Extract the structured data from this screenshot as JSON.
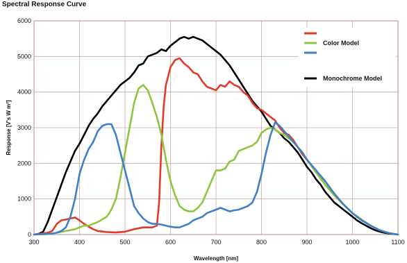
{
  "chart_data": {
    "type": "line",
    "title": "Spectral Response Curve",
    "xlabel": "Wavelength [nm]",
    "ylabel": "Response [V's W m²]",
    "xlim": [
      300,
      1100
    ],
    "ylim": [
      0,
      6000
    ],
    "x_ticks": [
      "300",
      "400",
      "500",
      "600",
      "700",
      "800",
      "900",
      "1000",
      "1100"
    ],
    "y_ticks": [
      "0",
      "1000",
      "2000",
      "3000",
      "4000",
      "5000",
      "6000"
    ],
    "grid": true,
    "legend_position": "top-right",
    "colors": {
      "red": "#e23a2a",
      "green": "#8cc63f",
      "blue": "#3f7fc7",
      "black": "#000000",
      "grid": "#c9a8a8"
    },
    "legend": [
      {
        "label": "",
        "color": "#e23a2a"
      },
      {
        "label": "Color Model",
        "color": "#8cc63f"
      },
      {
        "label": "",
        "color": "#3f7fc7"
      },
      {
        "label": "Monochrome Model",
        "color": "#000000"
      }
    ],
    "series": [
      {
        "color": "#000000",
        "x": [
          300,
          310,
          320,
          330,
          340,
          350,
          360,
          370,
          380,
          390,
          400,
          410,
          420,
          430,
          440,
          450,
          460,
          470,
          480,
          490,
          500,
          510,
          520,
          530,
          540,
          550,
          560,
          570,
          580,
          590,
          600,
          610,
          620,
          630,
          640,
          650,
          660,
          670,
          680,
          690,
          700,
          710,
          720,
          730,
          740,
          750,
          760,
          770,
          780,
          790,
          800,
          810,
          820,
          830,
          840,
          850,
          860,
          870,
          880,
          890,
          900,
          910,
          920,
          930,
          940,
          950,
          960,
          970,
          980,
          990,
          1000,
          1010,
          1020,
          1030,
          1040,
          1050,
          1060,
          1070,
          1080,
          1090,
          1100
        ],
        "y": [
          0,
          20,
          80,
          350,
          700,
          1050,
          1400,
          1750,
          2050,
          2350,
          2550,
          2800,
          3050,
          3250,
          3400,
          3600,
          3750,
          3900,
          4050,
          4200,
          4300,
          4400,
          4550,
          4750,
          4800,
          5000,
          5050,
          5100,
          5200,
          5150,
          5300,
          5400,
          5500,
          5550,
          5500,
          5550,
          5500,
          5450,
          5350,
          5250,
          5150,
          5050,
          4900,
          4750,
          4550,
          4350,
          4150,
          3950,
          3750,
          3600,
          3450,
          3250,
          3050,
          2950,
          2850,
          2700,
          2600,
          2450,
          2300,
          2100,
          1900,
          1750,
          1550,
          1400,
          1200,
          1050,
          900,
          800,
          700,
          600,
          500,
          400,
          320,
          250,
          180,
          120,
          80,
          50,
          30,
          15,
          0
        ]
      },
      {
        "color": "#e23a2a",
        "x": [
          300,
          330,
          340,
          350,
          360,
          370,
          380,
          390,
          400,
          410,
          420,
          430,
          440,
          460,
          480,
          500,
          520,
          540,
          560,
          570,
          575,
          580,
          585,
          590,
          600,
          610,
          620,
          630,
          640,
          650,
          660,
          670,
          680,
          690,
          700,
          710,
          720,
          730,
          740,
          750,
          760,
          770,
          780,
          790,
          800,
          810,
          820,
          830,
          840,
          850,
          860,
          870,
          880,
          890,
          900,
          920,
          940,
          960,
          980,
          1000,
          1020,
          1040,
          1060,
          1080,
          1100
        ],
        "y": [
          0,
          50,
          100,
          300,
          400,
          420,
          450,
          480,
          400,
          300,
          220,
          150,
          100,
          70,
          60,
          80,
          150,
          200,
          200,
          250,
          900,
          2500,
          3600,
          4200,
          4700,
          4900,
          4950,
          4800,
          4700,
          4550,
          4500,
          4300,
          4150,
          4100,
          4050,
          4200,
          4150,
          4300,
          4200,
          4150,
          4000,
          3900,
          3700,
          3550,
          3500,
          3400,
          3300,
          3200,
          3000,
          2850,
          2800,
          2650,
          2450,
          2250,
          2100,
          1750,
          1400,
          1100,
          850,
          600,
          420,
          250,
          120,
          40,
          0
        ]
      },
      {
        "color": "#8cc63f",
        "x": [
          300,
          330,
          350,
          370,
          390,
          400,
          410,
          420,
          440,
          460,
          470,
          480,
          490,
          500,
          510,
          520,
          530,
          540,
          550,
          560,
          570,
          580,
          590,
          600,
          610,
          620,
          630,
          640,
          650,
          660,
          670,
          680,
          690,
          700,
          710,
          720,
          730,
          740,
          750,
          760,
          770,
          780,
          790,
          800,
          810,
          820,
          830,
          840,
          850,
          860,
          870,
          880,
          890,
          900,
          920,
          940,
          960,
          980,
          1000,
          1020,
          1040,
          1060,
          1080,
          1100
        ],
        "y": [
          0,
          10,
          50,
          100,
          150,
          200,
          250,
          250,
          350,
          500,
          700,
          1000,
          1600,
          2300,
          3000,
          3700,
          4100,
          4200,
          4050,
          3700,
          3300,
          2800,
          2100,
          1500,
          1100,
          800,
          700,
          650,
          650,
          750,
          900,
          1200,
          1500,
          1800,
          1800,
          1850,
          2050,
          2100,
          2350,
          2400,
          2450,
          2500,
          2600,
          2850,
          2950,
          3000,
          2950,
          2850,
          2800,
          2700,
          2600,
          2450,
          2300,
          2100,
          1750,
          1400,
          1100,
          850,
          600,
          420,
          250,
          120,
          40,
          0
        ]
      },
      {
        "color": "#3f7fc7",
        "x": [
          300,
          320,
          340,
          350,
          360,
          370,
          380,
          390,
          400,
          410,
          420,
          430,
          440,
          450,
          460,
          470,
          480,
          490,
          500,
          510,
          520,
          530,
          540,
          550,
          560,
          570,
          580,
          590,
          600,
          610,
          620,
          630,
          640,
          650,
          660,
          670,
          680,
          690,
          700,
          710,
          720,
          730,
          740,
          750,
          760,
          770,
          780,
          790,
          800,
          810,
          820,
          830,
          840,
          850,
          860,
          870,
          880,
          890,
          900,
          920,
          940,
          960,
          980,
          1000,
          1020,
          1040,
          1060,
          1080,
          1100
        ],
        "y": [
          0,
          10,
          30,
          50,
          100,
          200,
          500,
          1000,
          1700,
          2100,
          2400,
          2600,
          2900,
          3050,
          3100,
          3100,
          2800,
          2300,
          1800,
          1300,
          800,
          600,
          450,
          350,
          300,
          300,
          280,
          250,
          220,
          200,
          200,
          250,
          300,
          400,
          450,
          500,
          600,
          650,
          700,
          750,
          700,
          650,
          680,
          700,
          750,
          800,
          900,
          1200,
          1700,
          2300,
          2800,
          3150,
          3050,
          2900,
          2750,
          2600,
          2450,
          2300,
          2100,
          1800,
          1500,
          1150,
          850,
          600,
          400,
          250,
          120,
          40,
          0
        ]
      }
    ]
  }
}
